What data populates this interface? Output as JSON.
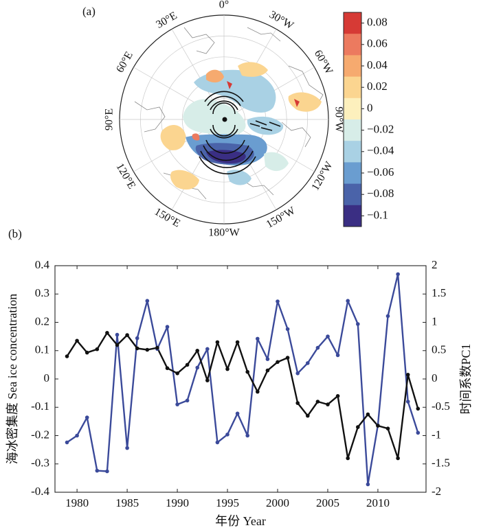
{
  "panel_a": {
    "label": "(a)",
    "longitude_labels": [
      "0°",
      "30°W",
      "60°W",
      "90°W",
      "120°W",
      "150°W",
      "180°W",
      "150°E",
      "120°E",
      "90°E",
      "60°E",
      "30°E"
    ],
    "colorbar": {
      "ticks": [
        "0.08",
        "0.06",
        "0.04",
        "0.02",
        "0",
        "−0.02",
        "−0.04",
        "−0.06",
        "−0.08",
        "−0.1"
      ],
      "colors": [
        "#d63a35",
        "#ec7a5f",
        "#f6aa6f",
        "#fbd590",
        "#fdf0bd",
        "#d7ede8",
        "#a9d1e4",
        "#6a9dd0",
        "#4a63a9",
        "#3a2e83"
      ]
    }
  },
  "chart_data": {
    "type": "line",
    "panel_label": "(b)",
    "title": "",
    "xlabel": "年份 Year",
    "ylabel_left": "海冰密集度 Sea ice concentration",
    "ylabel_right": "时间系数PC1",
    "xlim": [
      1977.8,
      2014.8
    ],
    "ylim_left": [
      -0.4,
      0.4
    ],
    "ylim_right": [
      -2,
      2
    ],
    "xticks": [
      "1980",
      "1985",
      "1990",
      "1995",
      "2000",
      "2005",
      "2010"
    ],
    "yticks_left": [
      "0.4",
      "0.3",
      "0.2",
      "0.1",
      "0",
      "-0.1",
      "-0.2",
      "-0.3",
      "-0.4"
    ],
    "yticks_right": [
      "2",
      "1.5",
      "1",
      "0.5",
      "0",
      "-0.5",
      "-1",
      "-1.5",
      "-2"
    ],
    "x": [
      1979,
      1980,
      1981,
      1982,
      1983,
      1984,
      1985,
      1986,
      1987,
      1988,
      1989,
      1990,
      1991,
      1992,
      1993,
      1994,
      1995,
      1996,
      1997,
      1998,
      1999,
      2000,
      2001,
      2002,
      2003,
      2004,
      2005,
      2006,
      2007,
      2008,
      2009,
      2010,
      2011,
      2012,
      2013,
      2014
    ],
    "series": [
      {
        "name": "Sea ice concentration",
        "axis": "left",
        "color": "#111111",
        "values": [
          0.08,
          0.135,
          0.093,
          0.105,
          0.163,
          0.12,
          0.155,
          0.108,
          0.103,
          0.11,
          0.038,
          0.02,
          0.05,
          0.1,
          -0.005,
          0.13,
          0.035,
          0.13,
          0.025,
          -0.045,
          0.03,
          0.06,
          0.075,
          -0.085,
          -0.13,
          -0.08,
          -0.09,
          -0.06,
          -0.28,
          -0.17,
          -0.125,
          -0.165,
          -0.175,
          -0.28,
          0.015,
          -0.105
        ]
      },
      {
        "name": "PC1",
        "axis": "right",
        "color": "#3b4a9a",
        "values": [
          -1.12,
          -1.0,
          -0.68,
          -1.62,
          -1.63,
          0.78,
          -1.22,
          0.72,
          1.38,
          0.53,
          0.92,
          -0.45,
          -0.38,
          0.2,
          0.53,
          -1.12,
          -0.98,
          -0.61,
          -1.0,
          0.71,
          0.35,
          1.37,
          0.88,
          0.1,
          0.28,
          0.55,
          0.75,
          0.42,
          1.38,
          0.97,
          -1.86,
          -0.82,
          1.11,
          1.85,
          -0.4,
          -0.95
        ]
      }
    ],
    "grid": false
  }
}
